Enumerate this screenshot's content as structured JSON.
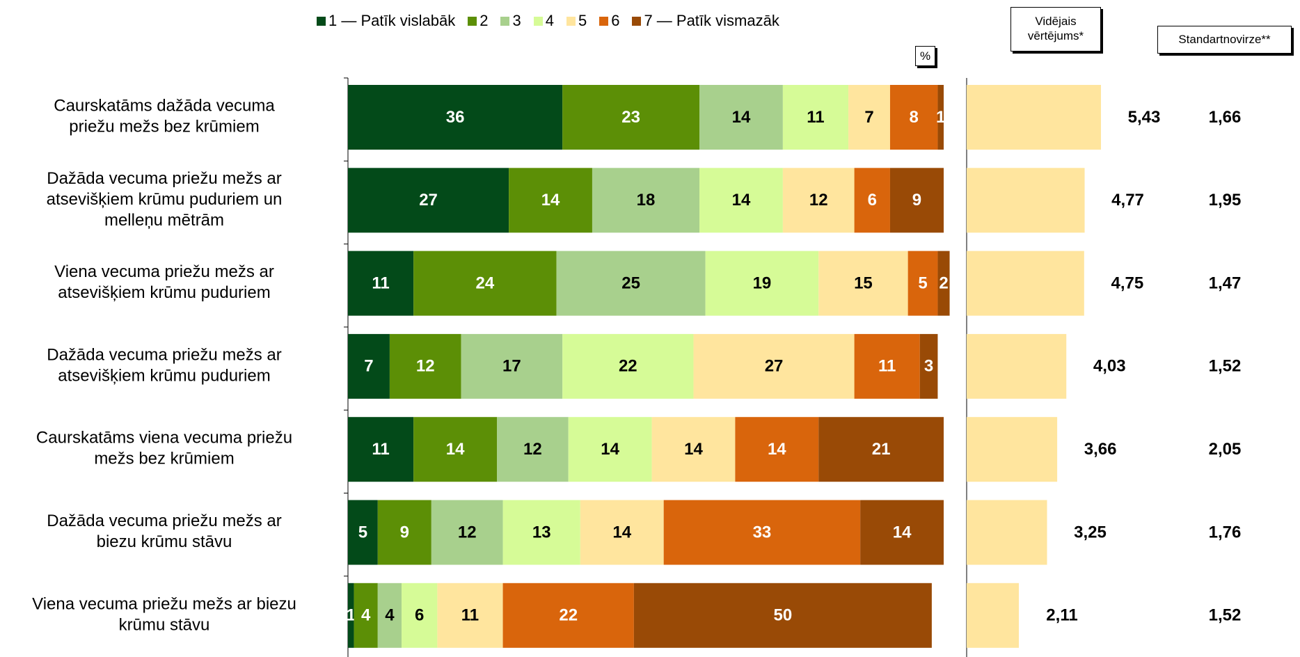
{
  "legend": [
    {
      "label": "1 — Patīk vislabāk",
      "color": "#034a19"
    },
    {
      "label": "2",
      "color": "#5c8f06"
    },
    {
      "label": "3",
      "color": "#a8d08d"
    },
    {
      "label": "4",
      "color": "#d6fb97"
    },
    {
      "label": "5",
      "color": "#ffe59e"
    },
    {
      "label": "6",
      "color": "#d9650c"
    },
    {
      "label": "7 — Patīk vismazāk",
      "color": "#994a06"
    }
  ],
  "percent_label": "%",
  "mean_header": "Vidējais\nvērtējums*",
  "sd_header": "Standartnovirze**",
  "chart_data": {
    "type": "bar",
    "stacked": true,
    "orientation": "horizontal",
    "unit": "%",
    "categories": [
      "Caurskatāms dažāda vecuma priežu mežs bez krūmiem",
      "Dažāda vecuma priežu mežs ar atsevišķiem krūmu puduriem un melleņu mētrām",
      "Viena vecuma priežu mežs ar atsevišķiem krūmu puduriem",
      "Dažāda vecuma priežu mežs ar atsevišķiem krūmu puduriem",
      "Caurskatāms viena vecuma priežu mežs bez krūmiem",
      "Dažāda vecuma priežu mežs ar biezu krūmu stāvu",
      "Viena vecuma priežu mežs ar biezu krūmu stāvu"
    ],
    "category_lines": [
      [
        "Caurskatāms dažāda vecuma",
        "priežu mežs bez krūmiem"
      ],
      [
        "Dažāda vecuma priežu mežs ar",
        "atsevišķiem krūmu puduriem un",
        "melleņu mētrām"
      ],
      [
        "Viena vecuma priežu mežs ar",
        "atsevišķiem krūmu puduriem"
      ],
      [
        "Dažāda vecuma priežu mežs ar",
        "atsevišķiem krūmu puduriem"
      ],
      [
        "Caurskatāms viena vecuma priežu",
        "mežs bez krūmiem"
      ],
      [
        "Dažāda vecuma priežu mežs ar",
        "biezu krūmu stāvu"
      ],
      [
        "Viena vecuma priežu mežs ar biezu",
        "krūmu stāvu"
      ]
    ],
    "series": [
      {
        "name": "1 — Patīk vislabāk",
        "values": [
          36,
          27,
          11,
          7,
          11,
          5,
          1
        ]
      },
      {
        "name": "2",
        "values": [
          23,
          14,
          24,
          12,
          14,
          9,
          4
        ]
      },
      {
        "name": "3",
        "values": [
          14,
          18,
          25,
          17,
          12,
          12,
          4
        ]
      },
      {
        "name": "4",
        "values": [
          11,
          14,
          19,
          22,
          14,
          13,
          6
        ]
      },
      {
        "name": "5",
        "values": [
          7,
          12,
          15,
          27,
          14,
          14,
          11
        ]
      },
      {
        "name": "6",
        "values": [
          8,
          6,
          5,
          11,
          14,
          33,
          22
        ]
      },
      {
        "name": "7 — Patīk vismazāk",
        "values": [
          1,
          9,
          2,
          3,
          21,
          14,
          50
        ]
      }
    ],
    "xlim": [
      0,
      100
    ],
    "mean": {
      "values": [
        5.43,
        4.77,
        4.75,
        4.03,
        3.66,
        3.25,
        2.11
      ],
      "labels": [
        "5,43",
        "4,77",
        "4,75",
        "4,03",
        "3,66",
        "3,25",
        "2,11"
      ],
      "xlim": [
        0,
        7
      ],
      "color": "#ffe59e"
    },
    "sd": {
      "values": [
        1.66,
        1.95,
        1.47,
        1.52,
        2.05,
        1.76,
        1.52
      ],
      "labels": [
        "1,66",
        "1,95",
        "1,47",
        "1,52",
        "2,05",
        "1,76",
        "1,52"
      ]
    }
  }
}
